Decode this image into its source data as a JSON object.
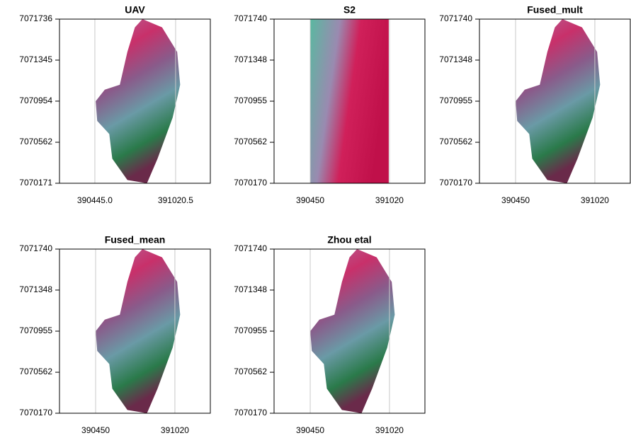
{
  "chart_data": [
    {
      "type": "raster",
      "title": "UAV",
      "xlim": [
        390193,
        391268
      ],
      "ylim": [
        7070171,
        7071736
      ],
      "xticks": [
        {
          "value": 390445,
          "label": "390445.0"
        },
        391020.5
      ],
      "yticks": [
        7070171,
        7070562,
        7070954,
        7071345,
        7071736
      ],
      "grid": true
    },
    {
      "type": "raster",
      "title": "S2",
      "xlim": [
        390190,
        391275
      ],
      "ylim": [
        7070170,
        7071740
      ],
      "xticks": [
        390450,
        391020
      ],
      "yticks": [
        7070170,
        7070562,
        7070955,
        7071348,
        7071740
      ],
      "grid": true
    },
    {
      "type": "raster",
      "title": "Fused_mult",
      "xlim": [
        390190,
        391275
      ],
      "ylim": [
        7070170,
        7071740
      ],
      "xticks": [
        390450,
        391020
      ],
      "yticks": [
        7070170,
        7070562,
        7070955,
        7071348,
        7071740
      ],
      "grid": true
    },
    {
      "type": "raster",
      "title": "Fused_mean",
      "xlim": [
        390190,
        391275
      ],
      "ylim": [
        7070170,
        7071740
      ],
      "xticks": [
        390450,
        391020
      ],
      "yticks": [
        7070170,
        7070562,
        7070955,
        7071348,
        7071740
      ],
      "grid": true
    },
    {
      "type": "raster",
      "title": "Zhou etal",
      "xlim": [
        390190,
        391275
      ],
      "ylim": [
        7070170,
        7071740
      ],
      "xticks": [
        390450,
        391020
      ],
      "yticks": [
        7070170,
        7070562,
        7070955,
        7071348,
        7071740
      ],
      "grid": true
    }
  ]
}
